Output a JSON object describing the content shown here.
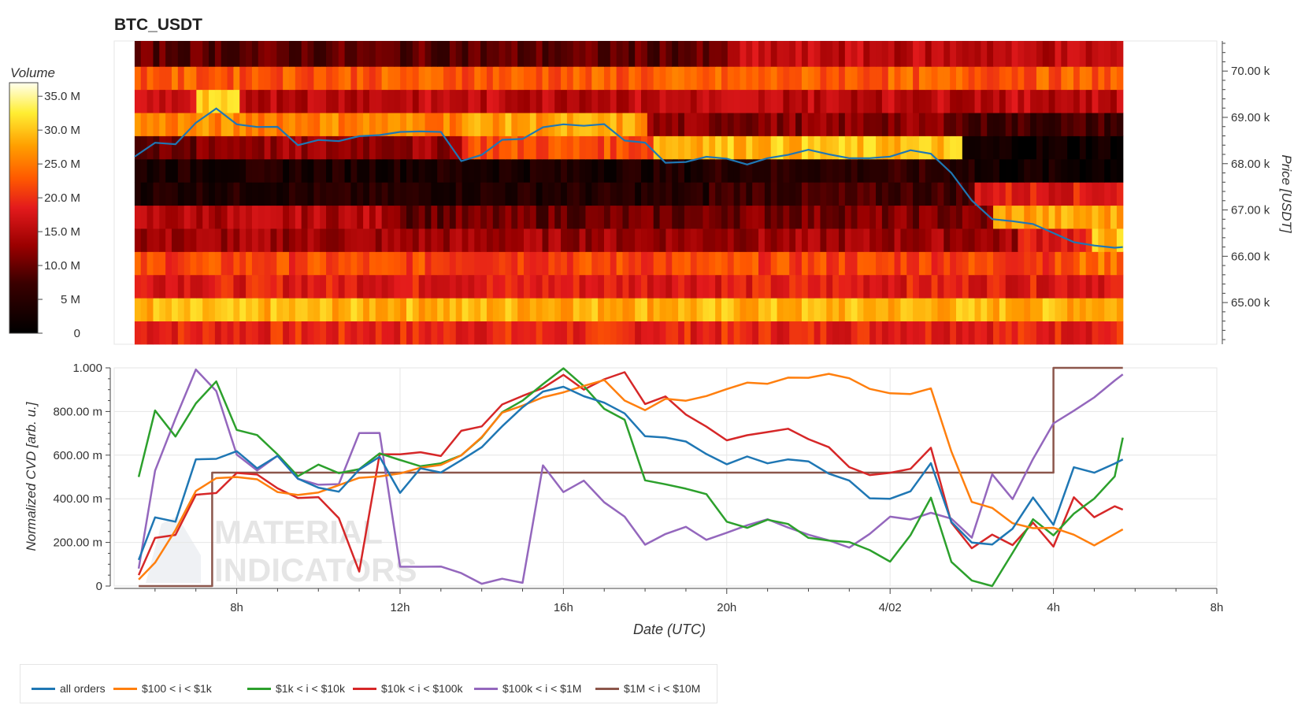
{
  "title": "BTC_USDT",
  "colors": {
    "price_line": "#1f77b4",
    "grid": "#e6e6e6",
    "axis": "#444444",
    "heatmap_low": "#000000",
    "heatmap_mid": "#e31a1c",
    "heatmap_high": "#ffff66"
  },
  "chart_data": [
    {
      "type": "heatmap",
      "colorbar": {
        "title": "Volume",
        "ticks": [
          "0",
          "5 M",
          "10.0 M",
          "15.0 M",
          "20.0 M",
          "25.0 M",
          "30.0 M",
          "35.0 M"
        ],
        "range": [
          0,
          37000000
        ]
      },
      "x_range": [
        5.0,
        32.0
      ],
      "y_axis": {
        "label": "Price [USDT]",
        "ticks": [
          "65.00 k",
          "66.00 k",
          "67.00 k",
          "68.00 k",
          "69.00 k",
          "70.00 k"
        ],
        "tick_values": [
          65000,
          66000,
          67000,
          68000,
          69000,
          70000
        ],
        "range": [
          64100,
          70650
        ]
      },
      "time_range": [
        5.5,
        29.7
      ],
      "price_bands": [
        {
          "low": 64100,
          "high": 64600,
          "level": 0.52
        },
        {
          "low": 64600,
          "high": 65100,
          "level": 0.78
        },
        {
          "low": 65100,
          "high": 65600,
          "level": 0.5
        },
        {
          "low": 65600,
          "high": 66100,
          "level": 0.6,
          "segments": [
            [
              5.5,
              28.6,
              0.58
            ],
            [
              28.6,
              29.7,
              0.66
            ]
          ]
        },
        {
          "low": 66100,
          "high": 66600,
          "level": 0.38,
          "segments": [
            [
              5.5,
              27.2,
              0.36
            ],
            [
              27.2,
              29.0,
              0.5
            ],
            [
              29.0,
              29.7,
              0.8
            ]
          ]
        },
        {
          "low": 66600,
          "high": 67100,
          "level": 0.3,
          "segments": [
            [
              5.5,
              12.0,
              0.4
            ],
            [
              12.0,
              19.5,
              0.27
            ],
            [
              19.5,
              26.5,
              0.3
            ],
            [
              26.5,
              29.7,
              0.75
            ]
          ]
        },
        {
          "low": 67100,
          "high": 67600,
          "level": 0.14,
          "segments": [
            [
              5.5,
              19.5,
              0.12
            ],
            [
              19.5,
              26.0,
              0.2
            ],
            [
              26.0,
              29.7,
              0.5
            ]
          ]
        },
        {
          "low": 67600,
          "high": 68100,
          "level": 0.1,
          "segments": [
            [
              5.5,
              19.5,
              0.1
            ],
            [
              19.5,
              26.0,
              0.15
            ],
            [
              26.0,
              29.7,
              0.06
            ]
          ]
        },
        {
          "low": 68100,
          "high": 68600,
          "level": 0.45,
          "segments": [
            [
              5.5,
              7.0,
              0.25
            ],
            [
              7.0,
              13.5,
              0.35
            ],
            [
              13.5,
              18.2,
              0.6
            ],
            [
              18.2,
              25.8,
              0.8
            ],
            [
              25.8,
              29.7,
              0.05
            ]
          ]
        },
        {
          "low": 68600,
          "high": 69100,
          "level": 0.55,
          "segments": [
            [
              5.5,
              13.5,
              0.7
            ],
            [
              13.5,
              18.0,
              0.75
            ],
            [
              18.0,
              25.8,
              0.32
            ],
            [
              25.8,
              29.7,
              0.2
            ]
          ]
        },
        {
          "low": 69100,
          "high": 69600,
          "level": 0.45,
          "segments": [
            [
              5.5,
              7.0,
              0.45
            ],
            [
              7.0,
              8.0,
              0.8
            ],
            [
              8.0,
              29.7,
              0.42
            ]
          ]
        },
        {
          "low": 69600,
          "high": 70100,
          "level": 0.62
        },
        {
          "low": 70100,
          "high": 70650,
          "level": 0.32,
          "segments": [
            [
              5.5,
              20.0,
              0.25
            ],
            [
              20.0,
              29.7,
              0.42
            ]
          ]
        }
      ],
      "series": [
        {
          "name": "price",
          "color": "#1f77b4",
          "x": [
            5.5,
            6.0,
            6.5,
            7.0,
            7.5,
            8.0,
            8.5,
            9.0,
            9.5,
            10.0,
            10.5,
            11.0,
            11.5,
            12.0,
            12.5,
            13.0,
            13.5,
            14.0,
            14.5,
            15.0,
            15.5,
            16.0,
            16.5,
            17.0,
            17.5,
            18.0,
            18.5,
            19.0,
            19.5,
            20.0,
            20.5,
            21.0,
            21.5,
            22.0,
            22.5,
            23.0,
            23.5,
            24.0,
            24.5,
            25.0,
            25.5,
            26.0,
            26.5,
            27.0,
            27.5,
            28.0,
            28.5,
            29.0,
            29.5,
            29.7
          ],
          "y": [
            68150,
            68450,
            68400,
            68900,
            69200,
            68850,
            68800,
            68800,
            68400,
            68500,
            68500,
            68600,
            68600,
            68700,
            68700,
            68700,
            68050,
            68200,
            68500,
            68550,
            68800,
            68850,
            68800,
            68850,
            68500,
            68450,
            68000,
            68050,
            68150,
            68100,
            68000,
            68100,
            68200,
            68300,
            68200,
            68100,
            68100,
            68150,
            68300,
            68200,
            67800,
            67200,
            66800,
            66750,
            66700,
            66500,
            66300,
            66250,
            66200,
            66200
          ]
        }
      ]
    },
    {
      "type": "line",
      "xlabel": "Date (UTC)",
      "ylabel": "Normalized CVD [arb. u.]",
      "x_ticks": [
        "8h",
        "12h",
        "16h",
        "20h",
        "4/02",
        "4h",
        "8h"
      ],
      "x_tick_values": [
        8,
        12,
        16,
        20,
        24,
        28,
        32
      ],
      "x_range": [
        5.0,
        32.0
      ],
      "y_ticks": [
        "0",
        "200.00 m",
        "400.00 m",
        "600.00 m",
        "800.00 m",
        "1.000"
      ],
      "y_tick_values": [
        0,
        0.2,
        0.4,
        0.6,
        0.8,
        1.0
      ],
      "ylim": [
        0,
        1.0
      ],
      "grid": true,
      "legend": "bottom-left",
      "series": [
        {
          "name": "all orders",
          "color": "#1f77b4",
          "x": [
            5.6,
            6.0,
            6.5,
            7.0,
            7.5,
            8.0,
            8.5,
            9.0,
            9.5,
            10.0,
            10.5,
            11.0,
            11.5,
            12.0,
            12.5,
            13.0,
            13.5,
            14.0,
            14.5,
            15.0,
            15.5,
            16.0,
            16.5,
            17.0,
            17.5,
            18.0,
            18.5,
            19.0,
            19.5,
            20.0,
            20.5,
            21.0,
            21.5,
            22.0,
            22.5,
            23.0,
            23.5,
            24.0,
            24.5,
            25.0,
            25.5,
            26.0,
            26.5,
            27.0,
            27.5,
            28.0,
            28.5,
            29.0,
            29.5,
            29.7
          ],
          "y": [
            0.12,
            0.32,
            0.3,
            0.58,
            0.6,
            0.6,
            0.55,
            0.6,
            0.5,
            0.45,
            0.42,
            0.52,
            0.58,
            0.42,
            0.52,
            0.52,
            0.58,
            0.65,
            0.75,
            0.82,
            0.88,
            0.9,
            0.88,
            0.85,
            0.8,
            0.7,
            0.7,
            0.65,
            0.6,
            0.56,
            0.58,
            0.58,
            0.6,
            0.56,
            0.5,
            0.5,
            0.42,
            0.4,
            0.45,
            0.58,
            0.3,
            0.2,
            0.2,
            0.25,
            0.4,
            0.3,
            0.55,
            0.5,
            0.55,
            0.58
          ]
        },
        {
          "name": "$100 < i < $1k",
          "color": "#ff7f0e",
          "x": [
            5.6,
            6.0,
            6.5,
            7.0,
            7.5,
            8.0,
            8.5,
            9.0,
            9.5,
            10.0,
            10.5,
            11.0,
            11.5,
            12.0,
            12.5,
            13.0,
            13.5,
            14.0,
            14.5,
            15.0,
            15.5,
            16.0,
            16.5,
            17.0,
            17.5,
            18.0,
            18.5,
            19.0,
            19.5,
            20.0,
            20.5,
            21.0,
            21.5,
            22.0,
            22.5,
            23.0,
            23.5,
            24.0,
            24.5,
            25.0,
            25.5,
            26.0,
            26.5,
            27.0,
            27.5,
            28.0,
            28.5,
            29.0,
            29.5,
            29.7
          ],
          "y": [
            0.03,
            0.1,
            0.25,
            0.45,
            0.48,
            0.5,
            0.5,
            0.45,
            0.42,
            0.44,
            0.46,
            0.48,
            0.5,
            0.5,
            0.55,
            0.55,
            0.6,
            0.7,
            0.78,
            0.82,
            0.86,
            0.88,
            0.9,
            0.95,
            0.85,
            0.8,
            0.85,
            0.84,
            0.88,
            0.92,
            0.92,
            0.94,
            0.94,
            0.97,
            0.96,
            0.95,
            0.92,
            0.88,
            0.88,
            0.92,
            0.6,
            0.4,
            0.35,
            0.3,
            0.25,
            0.28,
            0.22,
            0.2,
            0.22,
            0.26
          ]
        },
        {
          "name": "$1k < i < $10k",
          "color": "#2ca02c",
          "x": [
            5.6,
            6.0,
            6.5,
            7.0,
            7.5,
            8.0,
            8.5,
            9.0,
            9.5,
            10.0,
            10.5,
            11.0,
            11.5,
            12.0,
            12.5,
            13.0,
            13.5,
            14.0,
            14.5,
            15.0,
            15.5,
            16.0,
            16.5,
            17.0,
            17.5,
            18.0,
            18.5,
            19.0,
            19.5,
            20.0,
            20.5,
            21.0,
            21.5,
            22.0,
            22.5,
            23.0,
            23.5,
            24.0,
            24.5,
            25.0,
            25.5,
            26.0,
            26.5,
            27.0,
            27.5,
            28.0,
            28.5,
            29.0,
            29.5,
            29.7
          ],
          "y": [
            0.5,
            0.8,
            0.7,
            0.85,
            0.92,
            0.7,
            0.7,
            0.6,
            0.52,
            0.55,
            0.5,
            0.55,
            0.6,
            0.58,
            0.55,
            0.55,
            0.6,
            0.68,
            0.8,
            0.85,
            0.92,
            0.98,
            0.9,
            0.82,
            0.75,
            0.5,
            0.45,
            0.45,
            0.42,
            0.28,
            0.28,
            0.3,
            0.28,
            0.22,
            0.2,
            0.2,
            0.15,
            0.12,
            0.25,
            0.4,
            0.1,
            0.02,
            0.0,
            0.15,
            0.3,
            0.25,
            0.35,
            0.4,
            0.5,
            0.68
          ]
        },
        {
          "name": "$10k < i < $100k",
          "color": "#d62728",
          "x": [
            5.6,
            6.0,
            6.5,
            7.0,
            7.5,
            8.0,
            8.5,
            9.0,
            9.5,
            10.0,
            10.5,
            11.0,
            11.5,
            12.0,
            12.5,
            13.0,
            13.5,
            14.0,
            14.5,
            15.0,
            15.5,
            16.0,
            16.5,
            17.0,
            17.5,
            18.0,
            18.5,
            19.0,
            19.5,
            20.0,
            20.5,
            21.0,
            21.5,
            22.0,
            22.5,
            23.0,
            23.5,
            24.0,
            24.5,
            25.0,
            25.5,
            26.0,
            26.5,
            27.0,
            27.5,
            28.0,
            28.5,
            29.0,
            29.5,
            29.7
          ],
          "y": [
            0.05,
            0.22,
            0.25,
            0.4,
            0.42,
            0.52,
            0.5,
            0.45,
            0.4,
            0.42,
            0.32,
            0.05,
            0.6,
            0.6,
            0.6,
            0.6,
            0.7,
            0.72,
            0.85,
            0.88,
            0.92,
            0.95,
            0.9,
            0.95,
            0.98,
            0.82,
            0.85,
            0.8,
            0.72,
            0.68,
            0.7,
            0.7,
            0.72,
            0.68,
            0.62,
            0.55,
            0.5,
            0.5,
            0.55,
            0.62,
            0.3,
            0.18,
            0.25,
            0.2,
            0.3,
            0.2,
            0.42,
            0.32,
            0.35,
            0.35
          ]
        },
        {
          "name": "$100k < i < $1M",
          "color": "#9467bd",
          "x": [
            5.6,
            6.0,
            6.5,
            7.0,
            7.5,
            8.0,
            8.5,
            9.0,
            9.5,
            10.0,
            10.5,
            11.0,
            11.5,
            12.0,
            12.5,
            13.0,
            13.5,
            14.0,
            14.5,
            15.0,
            15.5,
            16.0,
            16.5,
            17.0,
            17.5,
            18.0,
            18.5,
            19.0,
            19.5,
            20.0,
            20.5,
            21.0,
            21.5,
            22.0,
            22.5,
            23.0,
            23.5,
            24.0,
            24.5,
            25.0,
            25.5,
            26.0,
            26.5,
            27.0,
            27.5,
            28.0,
            28.5,
            29.0,
            29.5,
            29.7
          ],
          "y": [
            0.08,
            0.52,
            0.75,
            0.98,
            0.9,
            0.6,
            0.55,
            0.58,
            0.5,
            0.48,
            0.45,
            0.7,
            0.7,
            0.08,
            0.08,
            0.08,
            0.05,
            0.02,
            0.05,
            0.02,
            0.55,
            0.45,
            0.5,
            0.4,
            0.3,
            0.2,
            0.25,
            0.28,
            0.22,
            0.25,
            0.28,
            0.3,
            0.25,
            0.22,
            0.2,
            0.18,
            0.22,
            0.3,
            0.32,
            0.35,
            0.3,
            0.22,
            0.5,
            0.4,
            0.6,
            0.75,
            0.8,
            0.88,
            0.95,
            0.97
          ]
        },
        {
          "name": "$1M < i < $10M",
          "color": "#8c564b",
          "x": [
            5.6,
            7.4,
            7.4,
            7.6,
            7.6,
            28.0,
            28.0,
            29.7
          ],
          "y": [
            0.0,
            0.0,
            0.52,
            0.52,
            0.52,
            0.52,
            1.0,
            1.0
          ]
        }
      ]
    }
  ]
}
